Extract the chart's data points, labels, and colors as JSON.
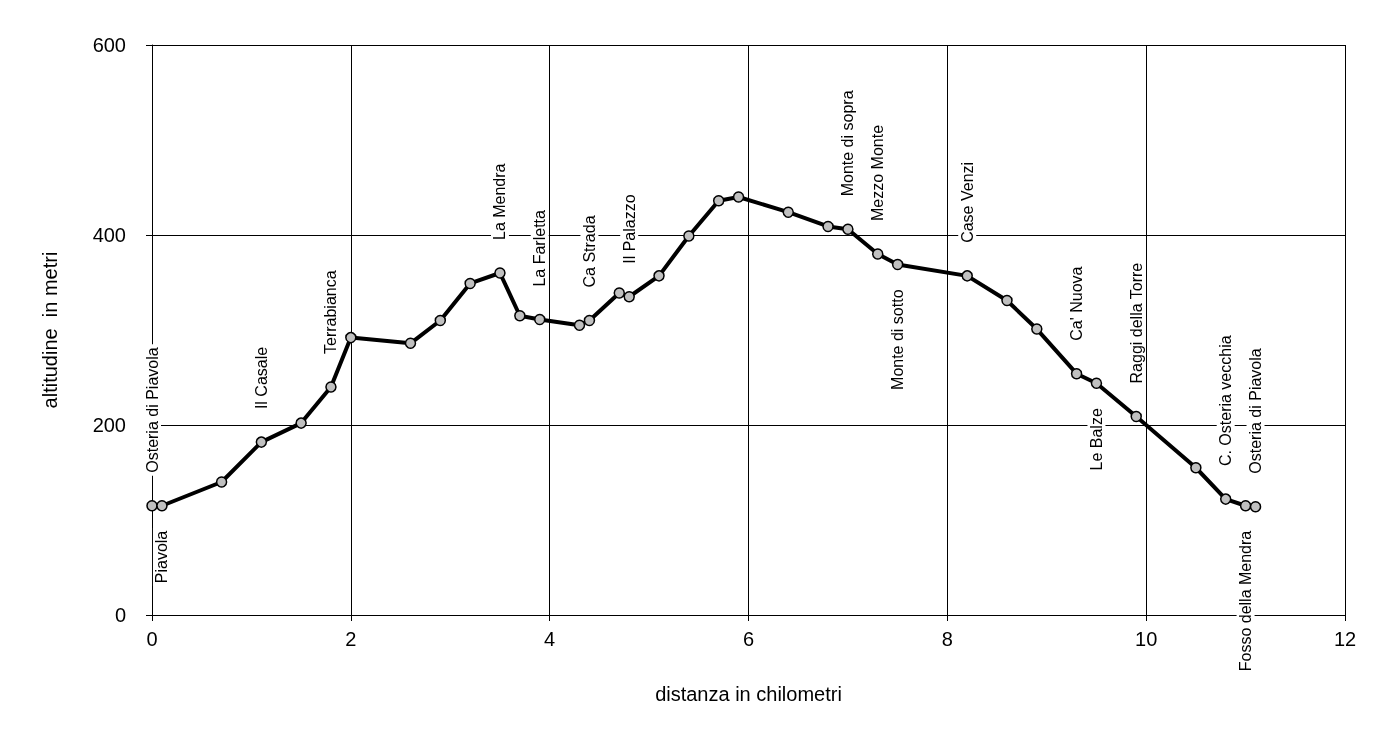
{
  "chart_data": {
    "type": "line",
    "xlabel": "distanza in chilometri",
    "ylabel": "altitudine  in metri",
    "x": [
      0,
      0.1,
      0.7,
      1.1,
      1.5,
      1.8,
      2.0,
      2.6,
      2.9,
      3.2,
      3.5,
      3.7,
      3.9,
      4.3,
      4.4,
      4.7,
      4.8,
      5.1,
      5.4,
      5.7,
      5.9,
      6.4,
      6.8,
      7.0,
      7.3,
      7.5,
      8.2,
      8.6,
      8.9,
      9.3,
      9.5,
      9.9,
      10.5,
      10.8,
      11.0,
      11.1
    ],
    "values": [
      115,
      115,
      140,
      182,
      202,
      240,
      292,
      286,
      310,
      349,
      360,
      315,
      311,
      305,
      310,
      339,
      335,
      357,
      399,
      436,
      440,
      424,
      409,
      406,
      380,
      369,
      357,
      331,
      301,
      254,
      244,
      209,
      155,
      122,
      115,
      114
    ],
    "color": "#000000",
    "marker": "circle",
    "xlim": [
      0,
      12
    ],
    "xticks": [
      0,
      2,
      4,
      6,
      8,
      10,
      12
    ],
    "ylim": [
      0,
      600
    ],
    "yticks": [
      0,
      200,
      400,
      600
    ],
    "grid": true,
    "annotations": [
      {
        "text": "Osteria di Piavola",
        "x": 0,
        "y": 115
      },
      {
        "text": "Piavola",
        "x": 0.1,
        "y": 115
      },
      {
        "text": "Il Casale",
        "x": 1.1,
        "y": 182
      },
      {
        "text": "Terrabianca",
        "x": 1.8,
        "y": 240
      },
      {
        "text": "La Mendra",
        "x": 3.5,
        "y": 360
      },
      {
        "text": "La Farletta",
        "x": 3.9,
        "y": 311
      },
      {
        "text": "Ca Strada",
        "x": 4.4,
        "y": 310
      },
      {
        "text": "Il Palazzo",
        "x": 4.8,
        "y": 335
      },
      {
        "text": "Monte di sopra",
        "x": 7.0,
        "y": 406
      },
      {
        "text": "Mezzo Monte",
        "x": 7.3,
        "y": 380
      },
      {
        "text": "Monte di sotto",
        "x": 7.5,
        "y": 369
      },
      {
        "text": "Case Venzi",
        "x": 8.2,
        "y": 357
      },
      {
        "text": "Ca' Nuova",
        "x": 9.3,
        "y": 254
      },
      {
        "text": "Le Balze",
        "x": 9.5,
        "y": 244
      },
      {
        "text": "Raggi della Torre",
        "x": 9.9,
        "y": 209
      },
      {
        "text": "C. Osteria vecchia",
        "x": 10.8,
        "y": 122
      },
      {
        "text": "Fosso della Mendra",
        "x": 11.0,
        "y": 115
      },
      {
        "text": "Osteria di Piavola",
        "x": 11.1,
        "y": 114
      }
    ]
  }
}
